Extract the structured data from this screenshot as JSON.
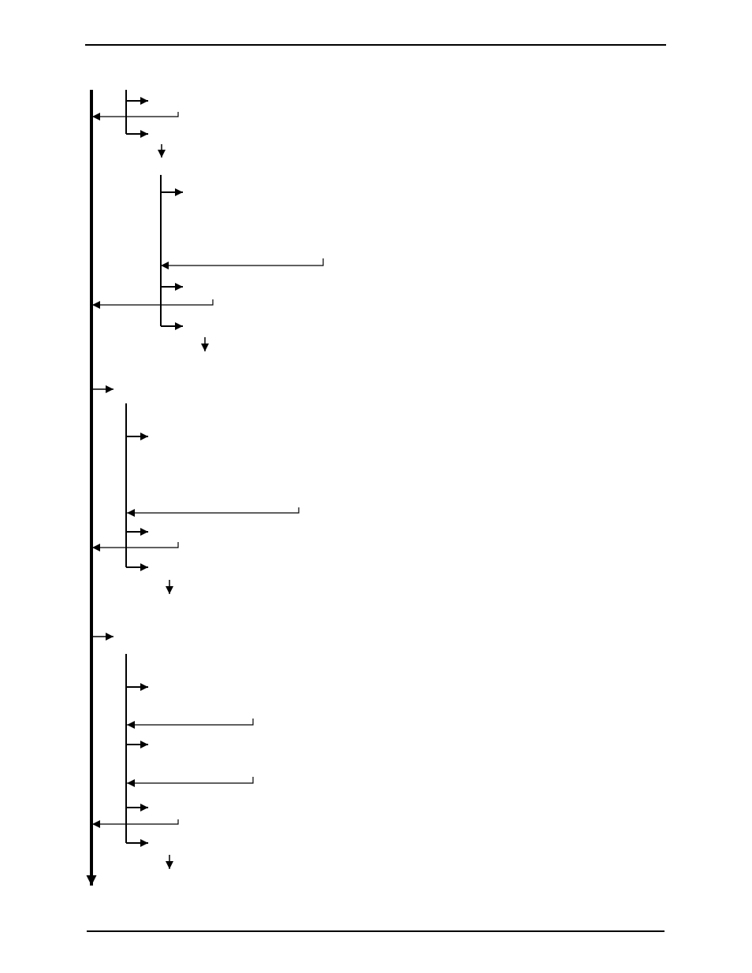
{
  "page": {
    "background": "#ffffff",
    "ink": "#000000",
    "header_rule": true,
    "footer_rule": true
  },
  "diagram": {
    "kind": "flowchart-connectors",
    "visible_text": [],
    "stroke_color": "#000000",
    "main_trunk": {
      "arrow": "down"
    },
    "sections": [
      {
        "id": "section-1",
        "branch_arrows_right": 2,
        "return_arrows_left": 1,
        "continuation": "down"
      },
      {
        "id": "section-2",
        "branch_arrows_right": 3,
        "return_arrows_left": 2,
        "continuation": "down"
      },
      {
        "id": "section-3",
        "entry": "right",
        "branch_arrows_right": 3,
        "return_arrows_left": 2,
        "continuation": "down"
      },
      {
        "id": "section-4",
        "entry": "right",
        "branch_arrows_right": 4,
        "return_arrows_left": 3,
        "continuation": "down"
      }
    ]
  }
}
